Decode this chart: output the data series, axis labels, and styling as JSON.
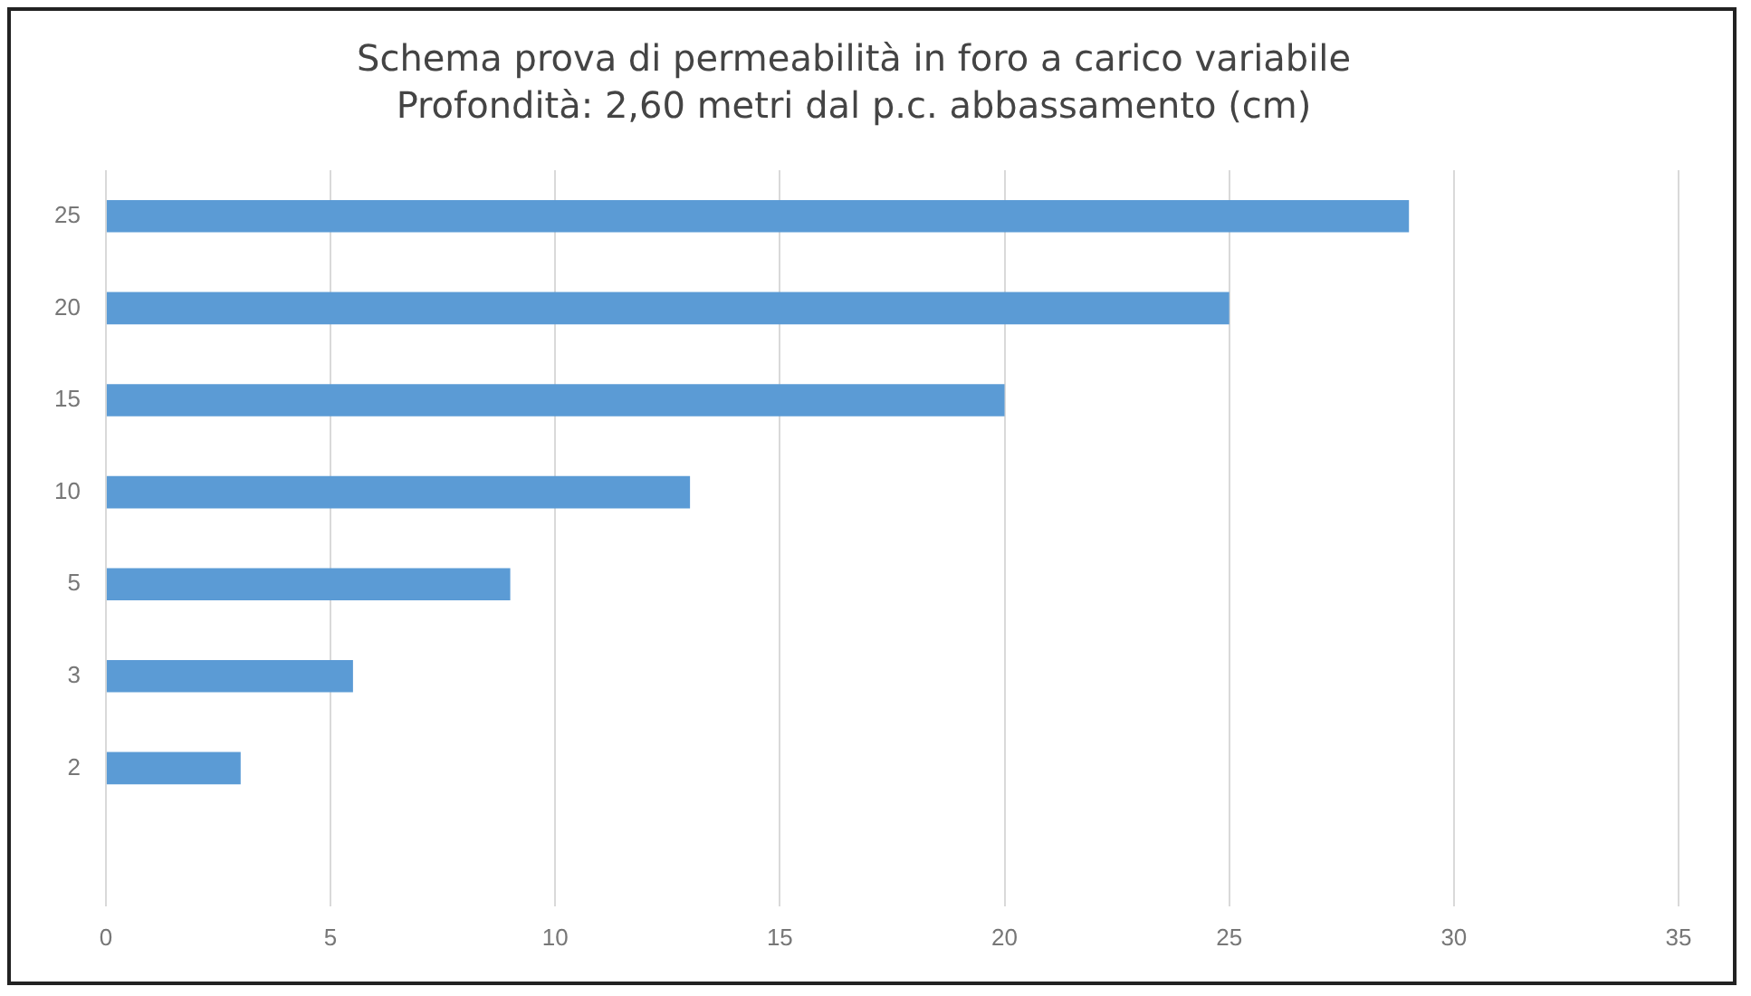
{
  "chart_data": {
    "type": "bar",
    "orientation": "horizontal",
    "title": "Schema prova di permeabilità in foro a carico variabile",
    "subtitle": "Profondità: 2,60 metri dal p.c. abbassamento (cm)",
    "categories": [
      "25",
      "20",
      "15",
      "10",
      "5",
      "3",
      "2",
      null
    ],
    "values": [
      29,
      25,
      20,
      13,
      9,
      5.5,
      3,
      null
    ],
    "color": "#5b9bd5",
    "xlim": [
      0,
      35
    ],
    "xticks": [
      0,
      5,
      10,
      15,
      20,
      25,
      30,
      35
    ],
    "grid": "x"
  }
}
